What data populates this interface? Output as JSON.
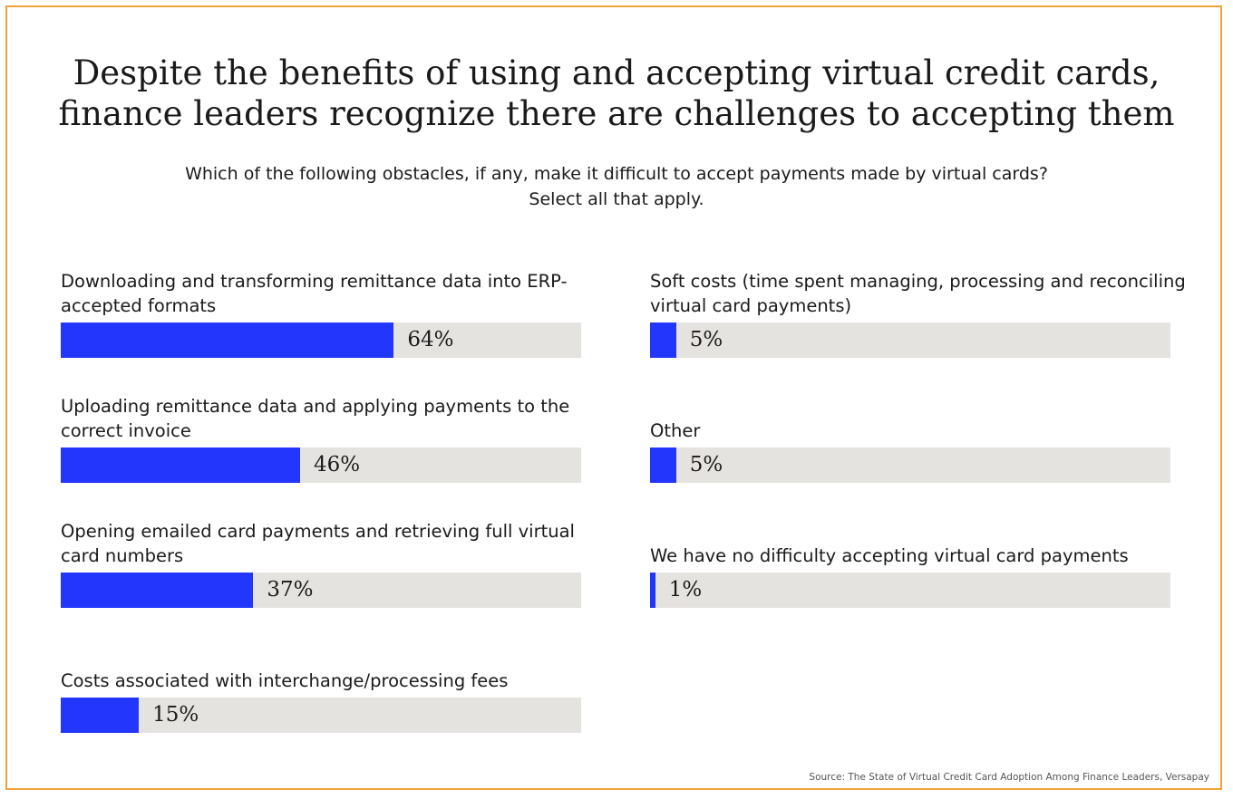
{
  "title_lines": [
    "Despite the benefits of using and accepting virtual credit cards,",
    "finance leaders recognize there are challenges to accepting them"
  ],
  "subtitle_lines": [
    "Which of the following obstacles, if any, make it difficult to accept payments made by virtual cards?",
    "Select all that apply."
  ],
  "source": "Source: The State of Virtual Credit Card Adoption Among Finance Leaders, Versapay",
  "colors": {
    "bar": "#2336fb",
    "track": "#e5e3df",
    "frame": "#f2a23a"
  },
  "chart_data": {
    "type": "bar",
    "orientation": "horizontal",
    "xlim": [
      0,
      100
    ],
    "unit": "%",
    "categories": [
      "Downloading and transforming remittance data into ERP-accepted formats",
      "Uploading remittance data and applying payments to the correct invoice",
      "Opening emailed card payments and retrieving full virtual card numbers",
      "Costs associated with interchange/processing fees",
      "Soft costs (time spent managing, processing and reconciling virtual card payments)",
      "Other",
      "We have no difficulty accepting virtual card payments"
    ],
    "values": [
      64,
      46,
      37,
      15,
      5,
      5,
      1
    ],
    "value_labels": [
      "64%",
      "46%",
      "37%",
      "15%",
      "5%",
      "5%",
      "1%"
    ]
  }
}
